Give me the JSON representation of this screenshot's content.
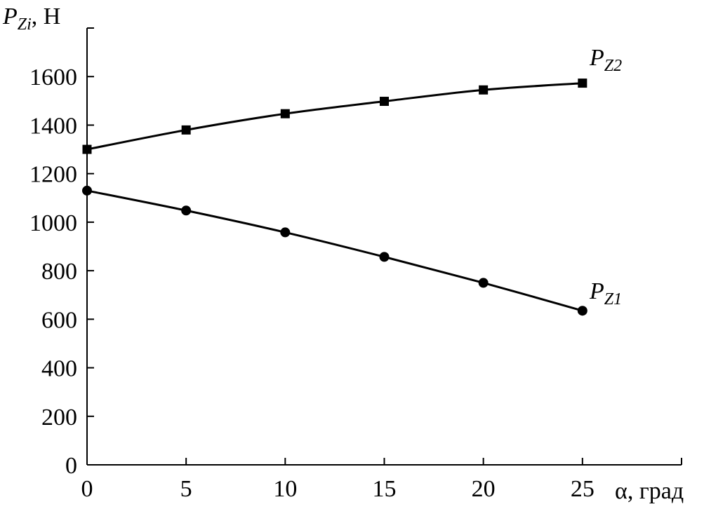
{
  "chart_data": {
    "type": "line",
    "title": "",
    "ylabel": {
      "symbol": "P",
      "subscript": "Zi",
      "unit": ", Н"
    },
    "xlabel": "α, град",
    "x": [
      0,
      5,
      10,
      15,
      20,
      25
    ],
    "xlim": [
      0,
      30
    ],
    "ylim": [
      0,
      1800
    ],
    "xticks": [
      0,
      5,
      10,
      15,
      20,
      25
    ],
    "yticks": [
      0,
      200,
      400,
      600,
      800,
      1000,
      1200,
      1400,
      1600
    ],
    "grid": false,
    "series": [
      {
        "label": {
          "symbol": "P",
          "subscript": "Z2"
        },
        "marker": "square",
        "color": "#000000",
        "values": [
          1300,
          1380,
          1447,
          1498,
          1545,
          1573
        ]
      },
      {
        "label": {
          "symbol": "P",
          "subscript": "Z1"
        },
        "marker": "circle",
        "color": "#000000",
        "values": [
          1130,
          1048,
          958,
          857,
          750,
          635
        ]
      }
    ]
  }
}
